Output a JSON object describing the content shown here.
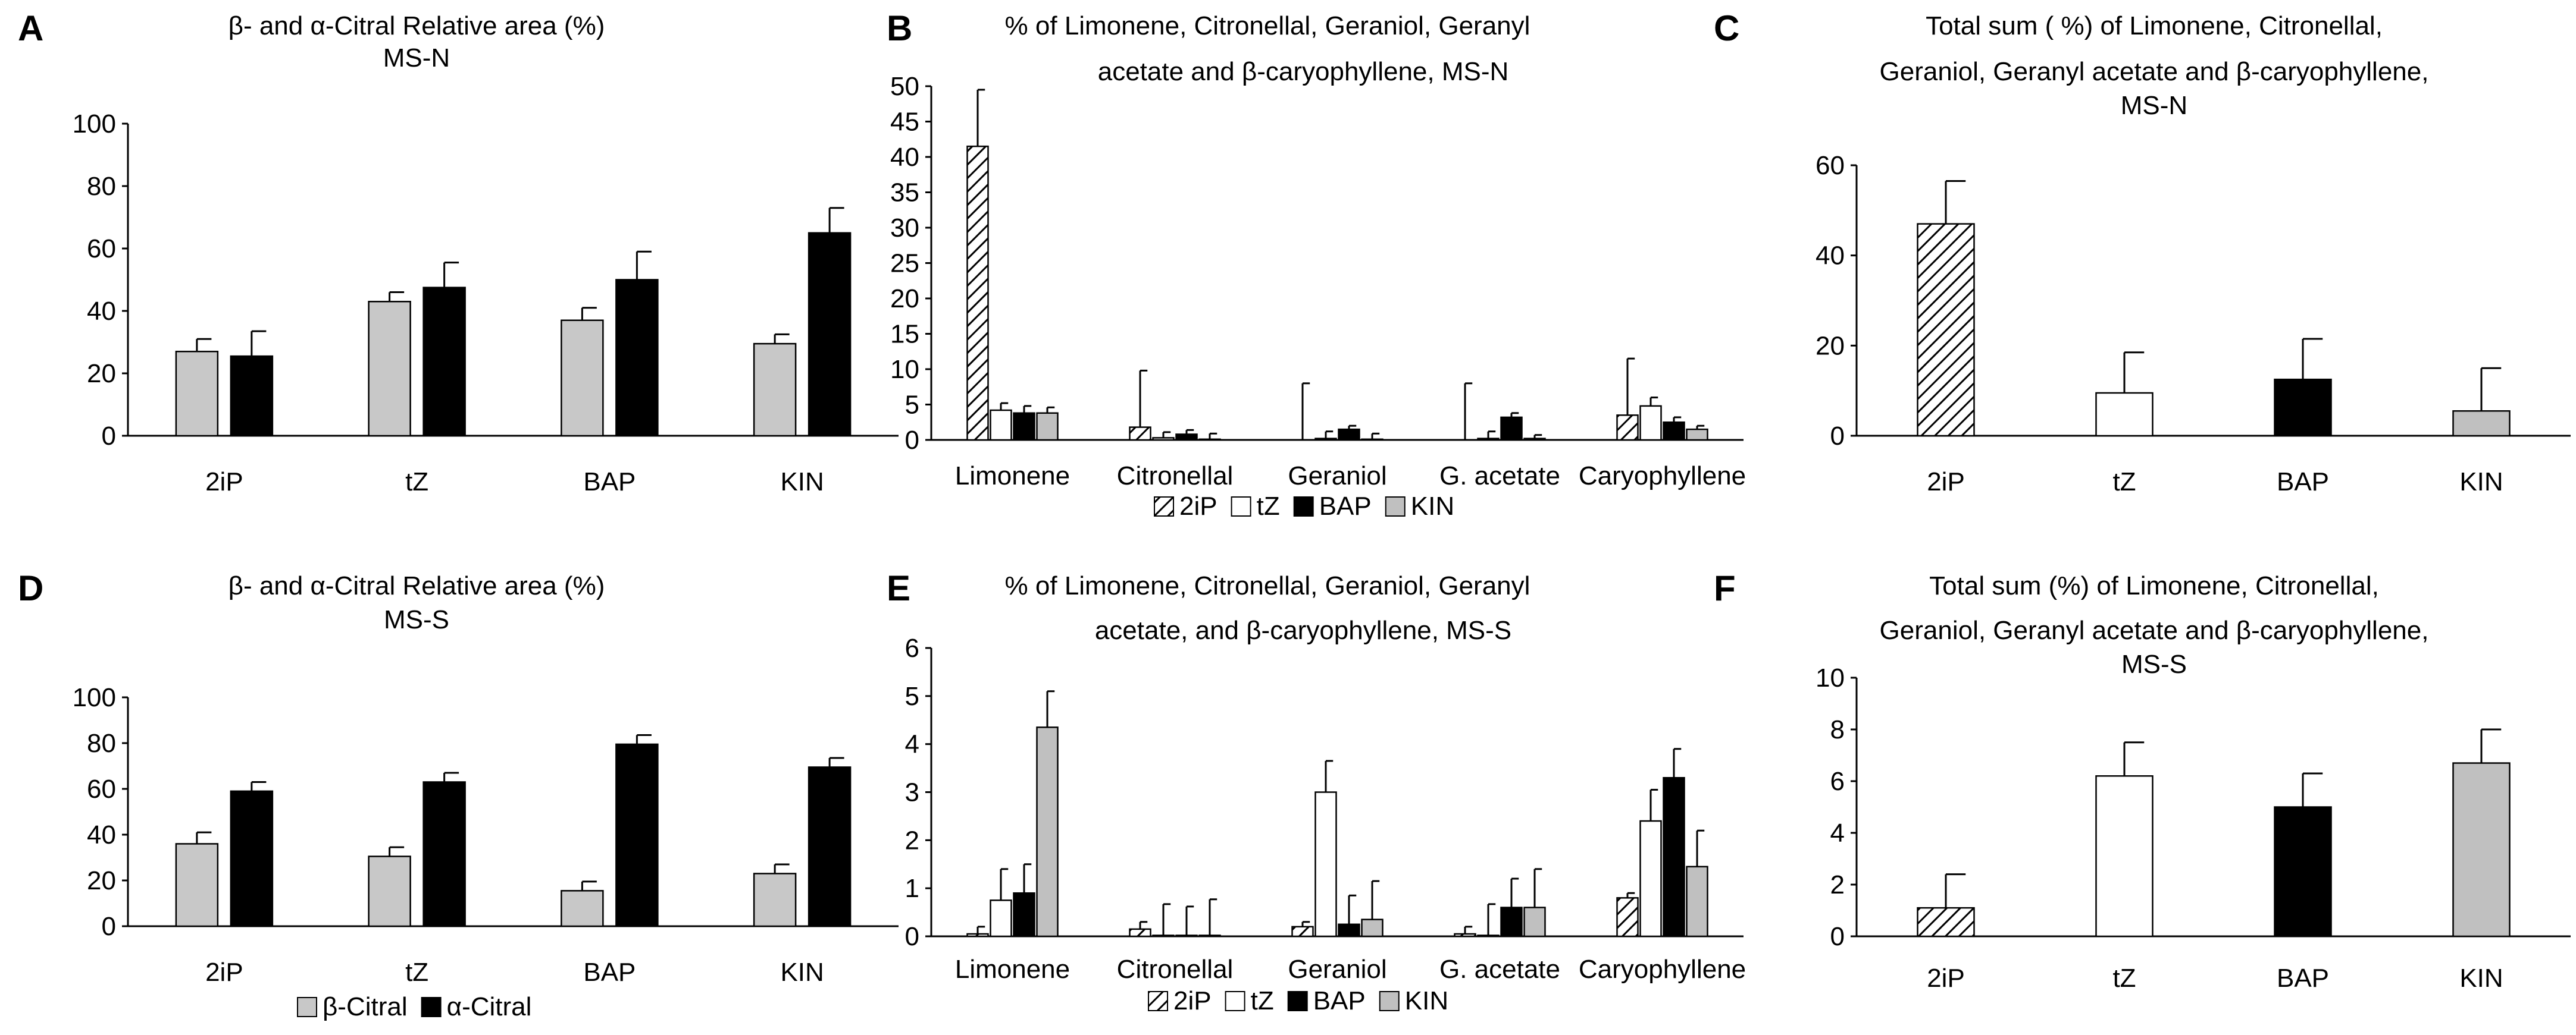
{
  "colors": {
    "s2iP": "#ffffff",
    "tZ": "#ffffff",
    "BAP": "#000000",
    "KIN": "#c0c0c0",
    "beta": "#c8c8c8",
    "alpha": "#000000",
    "axis": "#000000"
  },
  "chart_data": [
    {
      "panel": "A",
      "type": "bar",
      "title": [
        "β- and α-Citral Relative area (%)",
        "MS-N"
      ],
      "categories": [
        "2iP",
        "tZ",
        "BAP",
        "KIN"
      ],
      "ylim": [
        0,
        100
      ],
      "yticks": [
        "0",
        "20",
        "40",
        "60",
        "80",
        "100"
      ],
      "series": [
        {
          "name": "β-Citral",
          "key": "beta",
          "values": [
            27,
            43,
            37,
            29.5
          ],
          "errors": [
            4,
            3,
            4,
            3
          ]
        },
        {
          "name": "α-Citral",
          "key": "alpha",
          "values": [
            25.5,
            47.5,
            50,
            65
          ],
          "errors": [
            8,
            8,
            9,
            8
          ]
        }
      ]
    },
    {
      "panel": "B",
      "type": "bar",
      "title": [
        "% of Limonene, Citronellal, Geraniol, Geranyl",
        "acetate and β-caryophyllene, MS-N"
      ],
      "categories": [
        "Limonene",
        "Citronellal",
        "Geraniol",
        "G. acetate",
        "Caryophyllene"
      ],
      "ylim": [
        0,
        50
      ],
      "yticks": [
        "0",
        "5",
        "10",
        "15",
        "20",
        "25",
        "30",
        "35",
        "40",
        "45",
        "50"
      ],
      "series": [
        {
          "name": "2iP",
          "key": "s2iP",
          "values": [
            41.5,
            1.8,
            0,
            0,
            3.5
          ],
          "errors": [
            8,
            8,
            8,
            8,
            8
          ]
        },
        {
          "name": "tZ",
          "key": "tZ",
          "values": [
            4.2,
            0.3,
            0.2,
            0.2,
            4.8
          ],
          "errors": [
            1,
            0.8,
            1,
            1,
            1.2
          ]
        },
        {
          "name": "BAP",
          "key": "BAP",
          "values": [
            3.8,
            0.8,
            1.5,
            3.2,
            2.5
          ],
          "errors": [
            1,
            0.6,
            0.5,
            0.6,
            0.7
          ]
        },
        {
          "name": "KIN",
          "key": "KIN",
          "values": [
            3.8,
            0.1,
            0.1,
            0.2,
            1.5
          ],
          "errors": [
            0.8,
            0.8,
            0.8,
            0.5,
            0.5
          ]
        }
      ],
      "legend": [
        "2iP",
        "tZ",
        "BAP",
        "KIN"
      ]
    },
    {
      "panel": "C",
      "type": "bar",
      "title": [
        "Total sum ( %) of Limonene, Citronellal,",
        "Geraniol, Geranyl acetate and β-caryophyllene,",
        "MS-N"
      ],
      "categories": [
        "2iP",
        "tZ",
        "BAP",
        "KIN"
      ],
      "ylim": [
        0,
        60
      ],
      "yticks": [
        "0",
        "20",
        "40",
        "60"
      ],
      "series": [
        {
          "name": "total",
          "keys": [
            "s2iP",
            "tZ",
            "BAP",
            "KIN"
          ],
          "values": [
            47,
            9.5,
            12.5,
            5.5
          ],
          "errors": [
            9.5,
            9,
            9,
            9.5
          ]
        }
      ]
    },
    {
      "panel": "D",
      "type": "bar",
      "title": [
        "β- and α-Citral Relative area (%)",
        "MS-S"
      ],
      "categories": [
        "2iP",
        "tZ",
        "BAP",
        "KIN"
      ],
      "ylim": [
        0,
        100
      ],
      "yticks": [
        "0",
        "20",
        "40",
        "60",
        "80",
        "100"
      ],
      "series": [
        {
          "name": "β-Citral",
          "key": "beta",
          "values": [
            36,
            30.5,
            15.5,
            23
          ],
          "errors": [
            5,
            4,
            4,
            4
          ]
        },
        {
          "name": "α-Citral",
          "key": "alpha",
          "values": [
            59,
            63,
            79.5,
            69.5
          ],
          "errors": [
            4,
            4,
            4,
            4
          ]
        }
      ],
      "legend": [
        "β-Citral",
        "α-Citral"
      ]
    },
    {
      "panel": "E",
      "type": "bar",
      "title": [
        "% of Limonene, Citronellal, Geraniol, Geranyl",
        "acetate, and β-caryophyllene, MS-S"
      ],
      "categories": [
        "Limonene",
        "Citronellal",
        "Geraniol",
        "G. acetate",
        "Caryophyllene"
      ],
      "ylim": [
        0,
        6
      ],
      "yticks": [
        "0",
        "1",
        "2",
        "3",
        "4",
        "5",
        "6"
      ],
      "series": [
        {
          "name": "2iP",
          "key": "s2iP",
          "values": [
            0.05,
            0.15,
            0.2,
            0.05,
            0.8
          ],
          "errors": [
            0.15,
            0.15,
            0.1,
            0.15,
            0.1
          ]
        },
        {
          "name": "tZ",
          "key": "tZ",
          "values": [
            0.75,
            0.02,
            3.0,
            0.02,
            2.4
          ],
          "errors": [
            0.65,
            0.65,
            0.65,
            0.65,
            0.65
          ]
        },
        {
          "name": "BAP",
          "key": "BAP",
          "values": [
            0.9,
            0.02,
            0.25,
            0.6,
            3.3
          ],
          "errors": [
            0.6,
            0.6,
            0.6,
            0.6,
            0.6
          ]
        },
        {
          "name": "KIN",
          "key": "KIN",
          "values": [
            4.35,
            0.02,
            0.35,
            0.6,
            1.45
          ],
          "errors": [
            0.75,
            0.75,
            0.8,
            0.8,
            0.75
          ]
        }
      ],
      "legend": [
        "2iP",
        "tZ",
        "BAP",
        "KIN"
      ]
    },
    {
      "panel": "F",
      "type": "bar",
      "title": [
        "Total  sum (%) of Limonene, Citronellal,",
        "Geraniol, Geranyl  acetate and β-caryophyllene,",
        "MS-S"
      ],
      "categories": [
        "2iP",
        "tZ",
        "BAP",
        "KIN"
      ],
      "ylim": [
        0,
        10
      ],
      "yticks": [
        "0",
        "2",
        "4",
        "6",
        "8",
        "10"
      ],
      "series": [
        {
          "name": "total",
          "keys": [
            "s2iP",
            "tZ",
            "BAP",
            "KIN"
          ],
          "values": [
            1.1,
            6.2,
            5.0,
            6.7
          ],
          "errors": [
            1.3,
            1.3,
            1.3,
            1.3
          ]
        }
      ]
    }
  ]
}
